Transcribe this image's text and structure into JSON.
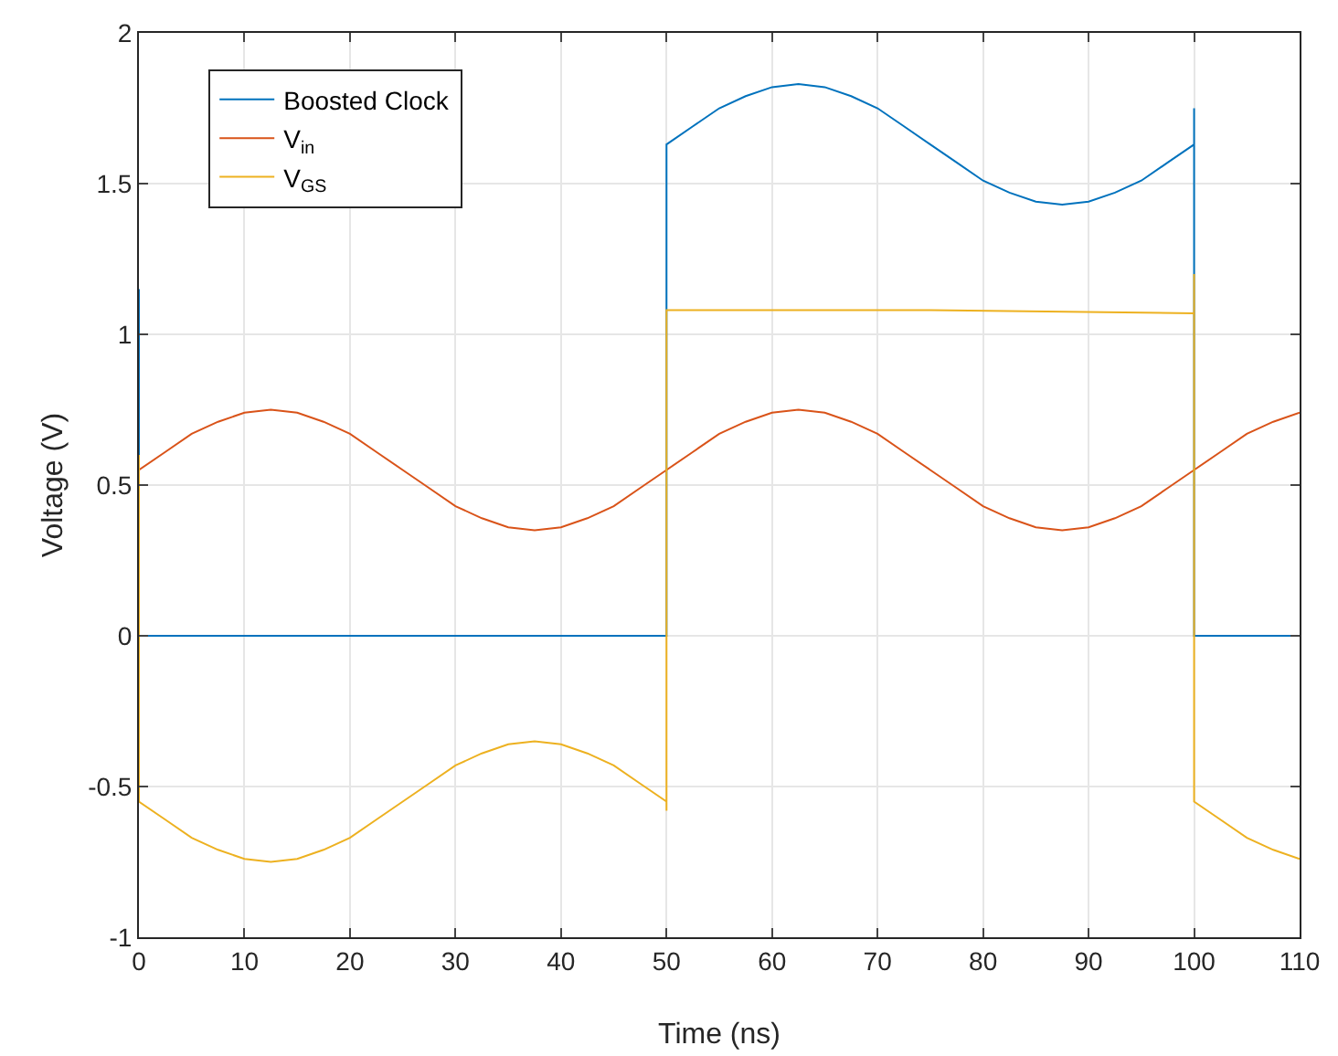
{
  "chart_data": {
    "type": "line",
    "xlabel": "Time (ns)",
    "ylabel": "Voltage (V)",
    "xlim": [
      0,
      110
    ],
    "ylim": [
      -1,
      2
    ],
    "xticks": [
      0,
      10,
      20,
      30,
      40,
      50,
      60,
      70,
      80,
      90,
      100,
      110
    ],
    "yticks": [
      -1,
      -0.5,
      0,
      0.5,
      1,
      1.5,
      2
    ],
    "grid": true,
    "legend": "top left",
    "series": [
      {
        "name": "Boosted Clock",
        "color": "#0072bd",
        "x": [
          0,
          0,
          50,
          50,
          52.5,
          55,
          57.5,
          60,
          62.5,
          65,
          67.5,
          70,
          72.5,
          75,
          77.5,
          80,
          82.5,
          85,
          87.5,
          90,
          92.5,
          95,
          97.5,
          100,
          100,
          100,
          110
        ],
        "values": [
          1.15,
          0,
          0,
          1.63,
          1.69,
          1.75,
          1.79,
          1.82,
          1.83,
          1.82,
          1.79,
          1.75,
          1.69,
          1.63,
          1.57,
          1.51,
          1.47,
          1.44,
          1.43,
          1.44,
          1.47,
          1.51,
          1.57,
          1.63,
          1.75,
          0,
          0
        ]
      },
      {
        "name": "V$_{in}$",
        "color": "#d95319",
        "x": [
          0,
          2.5,
          5,
          7.5,
          10,
          12.5,
          15,
          17.5,
          20,
          22.5,
          25,
          27.5,
          30,
          32.5,
          35,
          37.5,
          40,
          42.5,
          45,
          47.5,
          50,
          52.5,
          55,
          57.5,
          60,
          62.5,
          65,
          67.5,
          70,
          72.5,
          75,
          77.5,
          80,
          82.5,
          85,
          87.5,
          90,
          92.5,
          95,
          97.5,
          100,
          102.5,
          105,
          107.5,
          110
        ],
        "values": [
          0.55,
          0.61,
          0.67,
          0.71,
          0.74,
          0.75,
          0.74,
          0.71,
          0.67,
          0.61,
          0.55,
          0.49,
          0.43,
          0.39,
          0.36,
          0.35,
          0.36,
          0.39,
          0.43,
          0.49,
          0.55,
          0.61,
          0.67,
          0.71,
          0.74,
          0.75,
          0.74,
          0.71,
          0.67,
          0.61,
          0.55,
          0.49,
          0.43,
          0.39,
          0.36,
          0.35,
          0.36,
          0.39,
          0.43,
          0.49,
          0.55,
          0.61,
          0.67,
          0.71,
          0.74
        ]
      },
      {
        "name": "V$_{GS}$",
        "color": "#edb120",
        "x": [
          0,
          0,
          2.5,
          5,
          7.5,
          10,
          12.5,
          15,
          17.5,
          20,
          22.5,
          25,
          27.5,
          30,
          32.5,
          35,
          37.5,
          40,
          42.5,
          45,
          47.5,
          50,
          50,
          50,
          75,
          100,
          100,
          100,
          102.5,
          105,
          107.5,
          110
        ],
        "values": [
          0.6,
          -0.55,
          -0.61,
          -0.67,
          -0.71,
          -0.74,
          -0.75,
          -0.74,
          -0.71,
          -0.67,
          -0.61,
          -0.55,
          -0.49,
          -0.43,
          -0.39,
          -0.36,
          -0.35,
          -0.36,
          -0.39,
          -0.43,
          -0.49,
          -0.55,
          -0.58,
          1.08,
          1.08,
          1.07,
          1.2,
          -0.55,
          -0.61,
          -0.67,
          -0.71,
          -0.74
        ]
      }
    ]
  }
}
